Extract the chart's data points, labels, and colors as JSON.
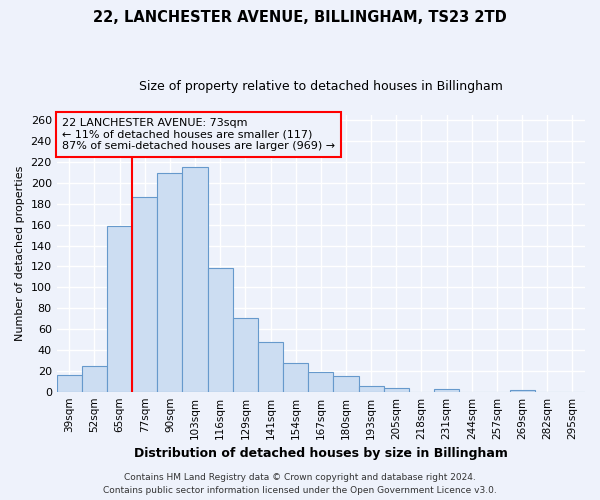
{
  "title": "22, LANCHESTER AVENUE, BILLINGHAM, TS23 2TD",
  "subtitle": "Size of property relative to detached houses in Billingham",
  "xlabel": "Distribution of detached houses by size in Billingham",
  "ylabel": "Number of detached properties",
  "bin_labels": [
    "39sqm",
    "52sqm",
    "65sqm",
    "77sqm",
    "90sqm",
    "103sqm",
    "116sqm",
    "129sqm",
    "141sqm",
    "154sqm",
    "167sqm",
    "180sqm",
    "193sqm",
    "205sqm",
    "218sqm",
    "231sqm",
    "244sqm",
    "257sqm",
    "269sqm",
    "282sqm",
    "295sqm"
  ],
  "bar_heights": [
    16,
    25,
    159,
    186,
    209,
    215,
    118,
    71,
    48,
    27,
    19,
    15,
    5,
    4,
    0,
    3,
    0,
    0,
    2,
    0,
    0
  ],
  "bar_color": "#ccddf2",
  "bar_edgecolor": "#6699cc",
  "vline_x": 2.5,
  "annotation_line1": "22 LANCHESTER AVENUE: 73sqm",
  "annotation_line2": "← 11% of detached houses are smaller (117)",
  "annotation_line3": "87% of semi-detached houses are larger (969) →",
  "ylim": [
    0,
    265
  ],
  "yticks": [
    0,
    20,
    40,
    60,
    80,
    100,
    120,
    140,
    160,
    180,
    200,
    220,
    240,
    260
  ],
  "footer1": "Contains HM Land Registry data © Crown copyright and database right 2024.",
  "footer2": "Contains public sector information licensed under the Open Government Licence v3.0.",
  "bg_color": "#eef2fb",
  "grid_color": "#ffffff",
  "title_fontsize": 10.5,
  "subtitle_fontsize": 9,
  "annotation_fontsize": 8,
  "ylabel_fontsize": 8,
  "xlabel_fontsize": 9,
  "footer_fontsize": 6.5
}
